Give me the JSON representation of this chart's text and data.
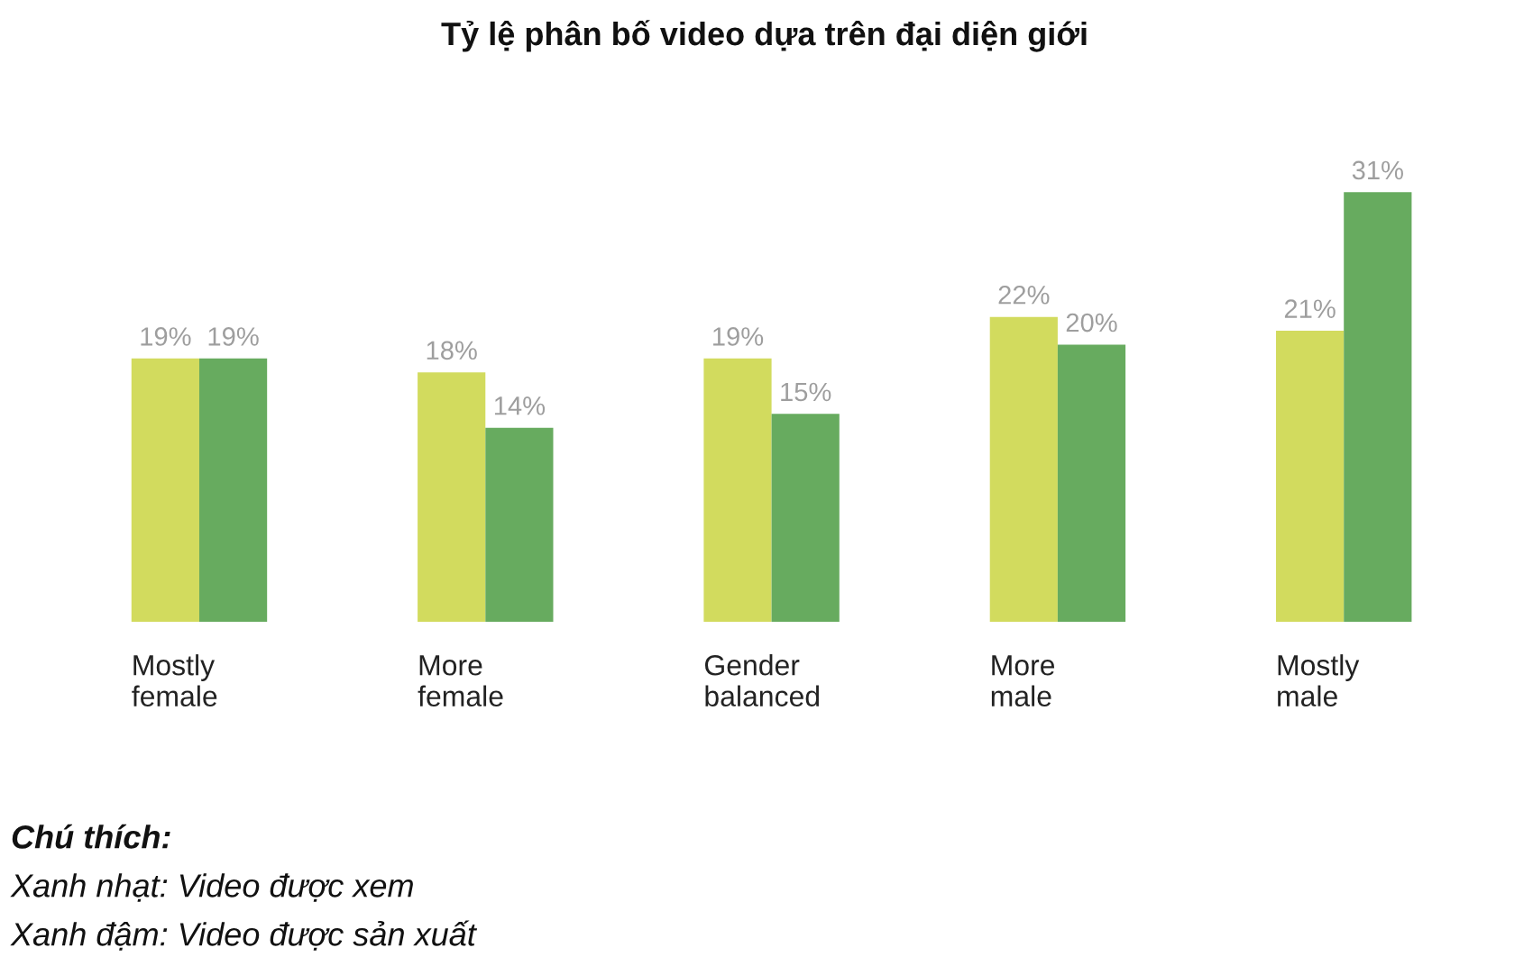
{
  "chart_data": {
    "type": "bar",
    "title": "Tỷ lệ phân bố video dựa trên đại diện giới",
    "categories": [
      "Mostly\nfemale",
      "More\nfemale",
      "Gender\nbalanced",
      "More\nmale",
      "Mostly\nmale"
    ],
    "series": [
      {
        "color": "#d2db5e",
        "values": [
          19,
          18,
          19,
          22,
          21
        ],
        "value_labels": [
          "19%",
          "18%",
          "19%",
          "22%",
          "21%"
        ]
      },
      {
        "color": "#67ab5f",
        "values": [
          19,
          14,
          15,
          20,
          31
        ],
        "value_labels": [
          "19%",
          "14%",
          "15%",
          "20%",
          "31%"
        ]
      }
    ],
    "annotations": [
      "Chú thích:",
      "Xanh nhạt: Video được xem",
      "Xanh đậm: Video được sản xuất"
    ]
  }
}
